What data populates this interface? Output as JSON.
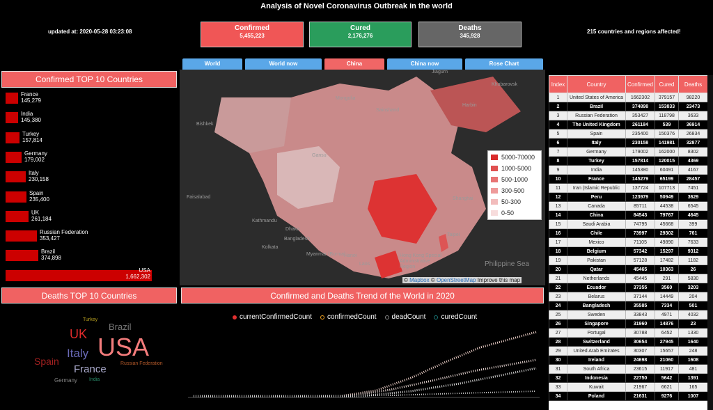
{
  "header": {
    "title": "Analysis of Novel Coronavirus Outbreak in the world",
    "updated": "updated at: 2020-05-28 03:23:08",
    "affected": "215 countries and regions affected!"
  },
  "stats": {
    "confirmed_label": "Confirmed",
    "confirmed_value": "5,455,223",
    "cured_label": "Cured",
    "cured_value": "2,176,276",
    "deaths_label": "Deaths",
    "deaths_value": "345,928"
  },
  "tabs": [
    "World",
    "World now",
    "China",
    "China now",
    "Rose Chart"
  ],
  "confirmed_top10": {
    "title": "Confirmed TOP 10 Countries",
    "items": [
      {
        "country": "France",
        "value": "145,279",
        "v": 145279
      },
      {
        "country": "India",
        "value": "145,380",
        "v": 145380
      },
      {
        "country": "Turkey",
        "value": "157,814",
        "v": 157814
      },
      {
        "country": "Germany",
        "value": "179,002",
        "v": 179002
      },
      {
        "country": "Italy",
        "value": "230,158",
        "v": 230158
      },
      {
        "country": "Spain",
        "value": "235,400",
        "v": 235400
      },
      {
        "country": "UK",
        "value": "261,184",
        "v": 261184
      },
      {
        "country": "Russian Federation",
        "value": "353,427",
        "v": 353427
      },
      {
        "country": "Brazil",
        "value": "374,898",
        "v": 374898
      },
      {
        "country": "USA",
        "value": "1,662,302",
        "v": 1662302
      }
    ]
  },
  "deaths_top10": {
    "title": "Deaths TOP 10 Countries",
    "words": [
      "USA",
      "UK",
      "Italy",
      "Spain",
      "France",
      "Brazil",
      "Germany",
      "Turkey",
      "Russian Federation",
      "India"
    ]
  },
  "map": {
    "labels": [
      "Mongolia",
      "Bishkek",
      "Faisalabad",
      "Bangladesh",
      "Myanmar (Burma)",
      "Laos",
      "Hong Kong Special Administrative Region",
      "Philippine Sea",
      "Taipei",
      "Shanghai",
      "Sainshand",
      "Jiagurn",
      "Khabarovsk",
      "Harbin",
      "Kathmandu",
      "Dhaka",
      "Kolkata",
      "Gansu",
      "Hanoi"
    ],
    "legend": [
      "5000-70000",
      "1000-5000",
      "500-1000",
      "300-500",
      "50-300",
      "0-50"
    ],
    "legend_colors": [
      "#d92b2b",
      "#e05050",
      "#e87474",
      "#ee9a9a",
      "#f2bcbc",
      "#f7dcdc"
    ],
    "attrib_copy": "©",
    "attrib_mapbox": "Mapbox",
    "attrib_osm": "OpenStreetMap",
    "attrib_improve": "Improve this map"
  },
  "trend": {
    "title": "Confirmed and Deaths Trend of the World in 2020",
    "series": [
      {
        "name": "currentConfirmedCount",
        "color": "#e23030"
      },
      {
        "name": "confirmedCount",
        "color": "#f0a020"
      },
      {
        "name": "deadCount",
        "color": "#888888"
      },
      {
        "name": "curedCount",
        "color": "#1a7a7a"
      }
    ]
  },
  "table": {
    "columns": [
      "Index",
      "Country",
      "Confirmed",
      "Cured",
      "Deaths"
    ],
    "rows": [
      [
        "1",
        "United States of America",
        "1662302",
        "379157",
        "98220"
      ],
      [
        "2",
        "Brazil",
        "374898",
        "153833",
        "23473"
      ],
      [
        "3",
        "Russian Federation",
        "353427",
        "118798",
        "3633"
      ],
      [
        "4",
        "The United Kingdom",
        "261184",
        "539",
        "36914"
      ],
      [
        "5",
        "Spain",
        "235400",
        "150376",
        "26834"
      ],
      [
        "6",
        "Italy",
        "230158",
        "141981",
        "32877"
      ],
      [
        "7",
        "Germany",
        "179002",
        "162000",
        "8302"
      ],
      [
        "8",
        "Turkey",
        "157814",
        "120015",
        "4369"
      ],
      [
        "9",
        "India",
        "145380",
        "60491",
        "4167"
      ],
      [
        "10",
        "France",
        "145279",
        "65199",
        "28457"
      ],
      [
        "11",
        "Iran (Islamic Republic",
        "137724",
        "107713",
        "7451"
      ],
      [
        "12",
        "Peru",
        "123979",
        "50949",
        "3629"
      ],
      [
        "13",
        "Canada",
        "85711",
        "44538",
        "6545"
      ],
      [
        "14",
        "China",
        "84543",
        "79767",
        "4645"
      ],
      [
        "15",
        "Saudi Arabia",
        "74795",
        "45668",
        "399"
      ],
      [
        "16",
        "Chile",
        "73997",
        "29302",
        "761"
      ],
      [
        "17",
        "Mexico",
        "71105",
        "49890",
        "7633"
      ],
      [
        "18",
        "Belgium",
        "57342",
        "15297",
        "9312"
      ],
      [
        "19",
        "Pakistan",
        "57128",
        "17482",
        "1182"
      ],
      [
        "20",
        "Qatar",
        "45465",
        "10363",
        "26"
      ],
      [
        "21",
        "Netherlands",
        "45445",
        "291",
        "5830"
      ],
      [
        "22",
        "Ecuador",
        "37355",
        "3560",
        "3203"
      ],
      [
        "23",
        "Belarus",
        "37144",
        "14449",
        "204"
      ],
      [
        "24",
        "Bangladesh",
        "35585",
        "7334",
        "501"
      ],
      [
        "25",
        "Sweden",
        "33843",
        "4971",
        "4032"
      ],
      [
        "26",
        "Singapore",
        "31960",
        "14876",
        "23"
      ],
      [
        "27",
        "Portugal",
        "30788",
        "6452",
        "1330"
      ],
      [
        "28",
        "Switzerland",
        "30654",
        "27945",
        "1640"
      ],
      [
        "29",
        "United Arab Emirates",
        "30307",
        "15657",
        "248"
      ],
      [
        "30",
        "Ireland",
        "24698",
        "21060",
        "1608"
      ],
      [
        "31",
        "South Africa",
        "23615",
        "11917",
        "481"
      ],
      [
        "32",
        "Indonesia",
        "22750",
        "5642",
        "1391"
      ],
      [
        "33",
        "Kuwait",
        "21967",
        "6621",
        "165"
      ],
      [
        "34",
        "Poland",
        "21631",
        "9276",
        "1007"
      ]
    ]
  }
}
